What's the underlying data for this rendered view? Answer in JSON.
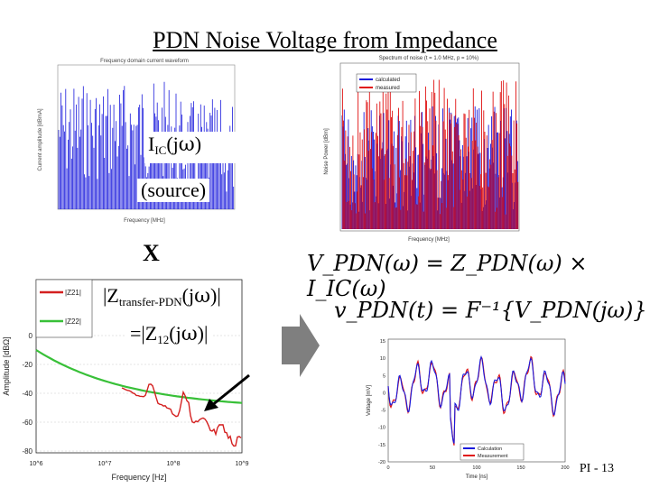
{
  "slide": {
    "title": "PDN Noise Voltage from Impedance",
    "page_number": "PI - 13",
    "multiply_sign": "X",
    "source_label_main": "I",
    "source_label_sub": "IC",
    "source_label_tail": "(jw)",
    "source_caption": "(source)",
    "z_label_prefix": "|Z",
    "z_label_sub": "transfer-PDN",
    "z_label_tail": "(jw)|",
    "z12_prefix": "=|Z",
    "z12_sub": "12",
    "z12_tail": "(jw)|",
    "eq1": "V_PDN(ω) = Z_PDN(ω) × I_IC(ω)",
    "eq2": "v_PDN(t) = F⁻¹{V_PDN(jω)}"
  },
  "plots": {
    "freq_domain": {
      "title": "Frequency domain current waveform",
      "xlabel": "Frequency [MHz]",
      "ylabel": "Current amplitude [dBmA]"
    },
    "spectrum": {
      "title": "Spectrum of noise (t = 1.0 MHz, p = 10%)",
      "xlabel": "Frequency [MHz]",
      "ylabel": "Noise Power [dBm]",
      "legend": [
        "calculated",
        "measured"
      ],
      "colors": [
        "#1a1adc",
        "#e01010"
      ]
    },
    "impedance": {
      "xlabel": "Frequency [Hz]",
      "ylabel": "Amplitude [dBΩ]",
      "legend": [
        "|Z21|",
        "|Z22|"
      ],
      "colors": [
        "#d42020",
        "#38c038"
      ],
      "yticks": [
        "0",
        "-20",
        "-40",
        "-60",
        "-80"
      ],
      "xticks": [
        "10^6",
        "10^7",
        "10^8",
        "10^9"
      ]
    },
    "time_domain": {
      "xlabel": "Time [ns]",
      "ylabel": "Voltage [mV]",
      "legend": [
        "Calculation",
        "Measurement"
      ],
      "colors": [
        "#1a1adc",
        "#e01010"
      ],
      "xticks": [
        "0",
        "50",
        "100",
        "150",
        "200"
      ],
      "yticks": [
        "15",
        "10",
        "5",
        "0",
        "-5",
        "-10",
        "-15",
        "-20"
      ]
    }
  }
}
